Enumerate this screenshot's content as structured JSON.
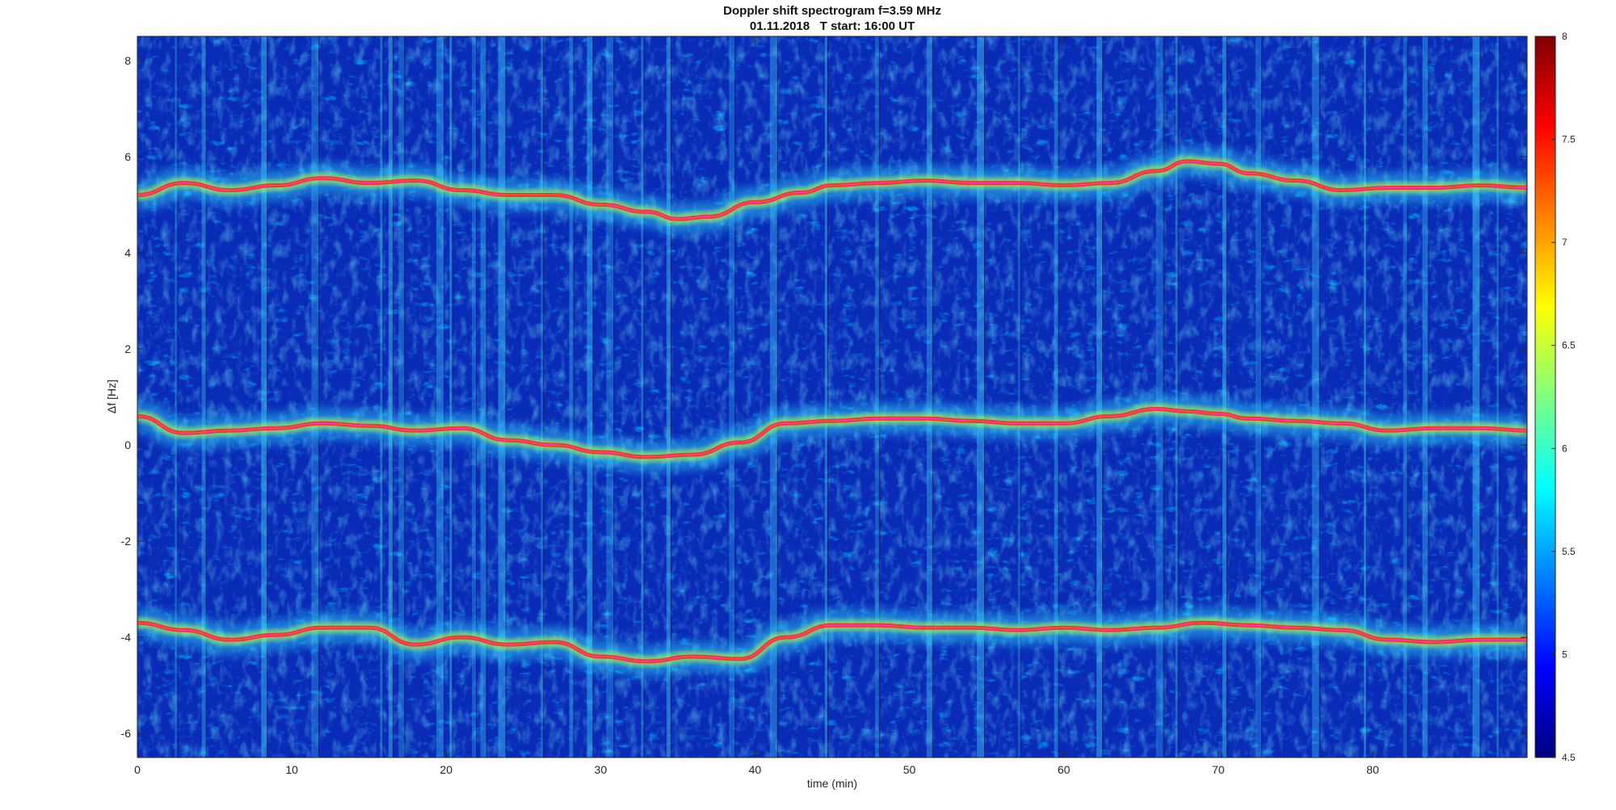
{
  "chart_data": {
    "type": "heatmap",
    "title": "Doppler shift spectrogram f=3.59 MHz",
    "subtitle": "01.11.2018   T start: 16:00 UT",
    "xlabel": "time (min)",
    "ylabel": "Δf [Hz]",
    "xlim": [
      0,
      90
    ],
    "ylim": [
      -6.5,
      8.5
    ],
    "x_ticks": [
      0,
      10,
      20,
      30,
      40,
      50,
      60,
      70,
      80
    ],
    "y_ticks": [
      -6,
      -4,
      -2,
      0,
      2,
      4,
      6,
      8
    ],
    "colorbar": {
      "colormap": "jet",
      "clim": [
        4.5,
        8
      ],
      "ticks": [
        "4.5",
        "5",
        "5.5",
        "6",
        "6.5",
        "7",
        "7.5",
        "8"
      ]
    },
    "traces": [
      {
        "label": "upper",
        "x": [
          0,
          3,
          6,
          9,
          12,
          15,
          18,
          21,
          24,
          27,
          30,
          33,
          35,
          37,
          40,
          43,
          45,
          48,
          51,
          54,
          57,
          60,
          63,
          66,
          68,
          70,
          72,
          75,
          78,
          81,
          84,
          87,
          90
        ],
        "y": [
          5.2,
          5.45,
          5.3,
          5.4,
          5.55,
          5.45,
          5.5,
          5.3,
          5.2,
          5.2,
          5.0,
          4.85,
          4.7,
          4.75,
          5.05,
          5.25,
          5.4,
          5.45,
          5.5,
          5.45,
          5.45,
          5.4,
          5.45,
          5.7,
          5.9,
          5.85,
          5.65,
          5.5,
          5.3,
          5.35,
          5.35,
          5.4,
          5.35
        ]
      },
      {
        "label": "middle",
        "x": [
          0,
          3,
          6,
          9,
          12,
          15,
          18,
          21,
          24,
          27,
          30,
          33,
          36,
          39,
          42,
          45,
          48,
          51,
          54,
          57,
          60,
          63,
          66,
          68,
          70,
          72,
          75,
          78,
          81,
          84,
          87,
          90
        ],
        "y": [
          0.6,
          0.25,
          0.3,
          0.35,
          0.45,
          0.4,
          0.3,
          0.35,
          0.1,
          0.0,
          -0.15,
          -0.25,
          -0.2,
          0.05,
          0.45,
          0.5,
          0.55,
          0.55,
          0.5,
          0.45,
          0.45,
          0.6,
          0.75,
          0.7,
          0.65,
          0.55,
          0.5,
          0.45,
          0.3,
          0.35,
          0.35,
          0.3
        ]
      },
      {
        "label": "lower",
        "x": [
          0,
          3,
          6,
          9,
          12,
          15,
          18,
          21,
          24,
          27,
          30,
          33,
          36,
          39,
          42,
          45,
          48,
          51,
          54,
          57,
          60,
          63,
          66,
          69,
          72,
          75,
          78,
          81,
          84,
          87,
          90
        ],
        "y": [
          -3.7,
          -3.85,
          -4.05,
          -3.95,
          -3.8,
          -3.8,
          -4.15,
          -4.0,
          -4.15,
          -4.1,
          -4.4,
          -4.5,
          -4.4,
          -4.45,
          -4.0,
          -3.75,
          -3.75,
          -3.8,
          -3.8,
          -3.85,
          -3.8,
          -3.85,
          -3.8,
          -3.7,
          -3.75,
          -3.8,
          -3.85,
          -4.05,
          -4.1,
          -4.05,
          -4.05
        ]
      }
    ],
    "vertical_streaks_min": [
      2.5,
      4.3,
      8.2,
      11.5,
      15.8,
      16.4,
      17.1,
      19.6,
      20.3,
      21.8,
      22.4,
      23.6,
      26.2,
      28.1,
      29.3,
      30.6,
      32.7,
      34.4,
      38.5,
      41.2,
      44.6,
      47.9,
      51.3,
      54.6,
      57.1,
      59.5,
      62.3,
      66.2,
      67.3,
      70.4,
      72.6,
      76.3,
      79.5,
      82.1,
      83.4,
      86.7,
      88.1
    ]
  }
}
